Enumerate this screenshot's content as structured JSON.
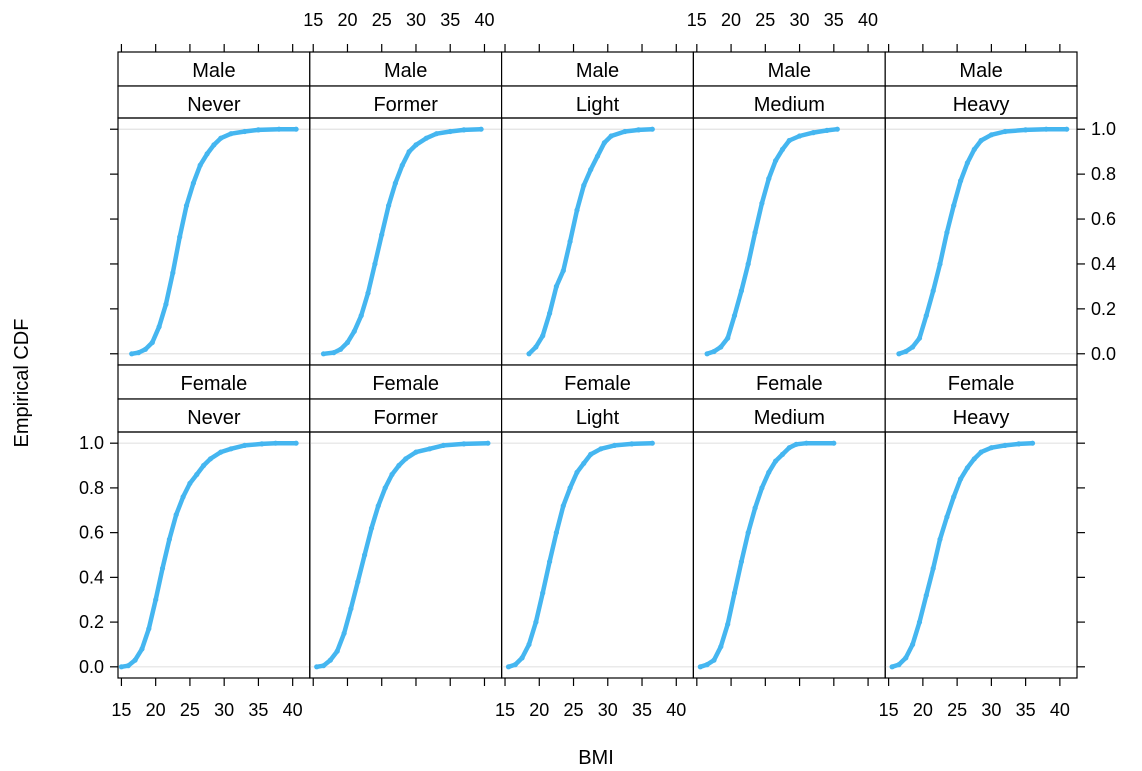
{
  "chart_data": {
    "type": "line",
    "xlabel": "BMI",
    "ylabel": "Empirical CDF",
    "xlim": [
      14.5,
      42.5
    ],
    "ylim": [
      -0.05,
      1.05
    ],
    "x_ticks": [
      15,
      20,
      25,
      30,
      35,
      40
    ],
    "y_ticks": [
      0.0,
      0.2,
      0.4,
      0.6,
      0.8,
      1.0
    ],
    "y_tick_labels": [
      "0.0",
      "0.2",
      "0.4",
      "0.6",
      "0.8",
      "1.0"
    ],
    "series_color": "#45b6f0",
    "rows": [
      {
        "sex": "Male",
        "panels": [
          {
            "smoking": "Never",
            "points": [
              [
                16.5,
                0.0
              ],
              [
                17.5,
                0.005
              ],
              [
                18.5,
                0.02
              ],
              [
                19.5,
                0.05
              ],
              [
                20.5,
                0.12
              ],
              [
                21.5,
                0.22
              ],
              [
                22.5,
                0.36
              ],
              [
                23.5,
                0.52
              ],
              [
                24.5,
                0.66
              ],
              [
                25.5,
                0.76
              ],
              [
                26.5,
                0.84
              ],
              [
                27.5,
                0.89
              ],
              [
                28.5,
                0.93
              ],
              [
                29.5,
                0.96
              ],
              [
                31,
                0.98
              ],
              [
                33,
                0.99
              ],
              [
                35,
                0.997
              ],
              [
                38,
                1.0
              ],
              [
                40.5,
                1.0
              ]
            ]
          },
          {
            "smoking": "Former",
            "points": [
              [
                16.5,
                0.0
              ],
              [
                18.0,
                0.005
              ],
              [
                19.0,
                0.02
              ],
              [
                20.0,
                0.05
              ],
              [
                21.0,
                0.1
              ],
              [
                22.0,
                0.17
              ],
              [
                23.0,
                0.27
              ],
              [
                24.0,
                0.4
              ],
              [
                25.0,
                0.53
              ],
              [
                26.0,
                0.66
              ],
              [
                27.0,
                0.76
              ],
              [
                28.0,
                0.84
              ],
              [
                29.0,
                0.9
              ],
              [
                30.0,
                0.93
              ],
              [
                31.5,
                0.96
              ],
              [
                33,
                0.98
              ],
              [
                35,
                0.99
              ],
              [
                37,
                0.997
              ],
              [
                39.5,
                1.0
              ]
            ]
          },
          {
            "smoking": "Light",
            "points": [
              [
                18.5,
                0.0
              ],
              [
                19.5,
                0.03
              ],
              [
                20.5,
                0.08
              ],
              [
                21.5,
                0.18
              ],
              [
                22.5,
                0.3
              ],
              [
                23.5,
                0.37
              ],
              [
                24.5,
                0.5
              ],
              [
                25.5,
                0.64
              ],
              [
                26.5,
                0.75
              ],
              [
                27.5,
                0.82
              ],
              [
                28.5,
                0.88
              ],
              [
                29.5,
                0.94
              ],
              [
                30.5,
                0.97
              ],
              [
                32.5,
                0.99
              ],
              [
                34.5,
                0.997
              ],
              [
                36.5,
                1.0
              ]
            ]
          },
          {
            "smoking": "Medium",
            "points": [
              [
                16.5,
                0.0
              ],
              [
                17.5,
                0.01
              ],
              [
                18.5,
                0.03
              ],
              [
                19.5,
                0.07
              ],
              [
                20.5,
                0.17
              ],
              [
                21.5,
                0.28
              ],
              [
                22.5,
                0.4
              ],
              [
                23.5,
                0.54
              ],
              [
                24.5,
                0.67
              ],
              [
                25.5,
                0.78
              ],
              [
                26.5,
                0.86
              ],
              [
                27.5,
                0.91
              ],
              [
                28.5,
                0.95
              ],
              [
                30,
                0.97
              ],
              [
                32,
                0.985
              ],
              [
                34,
                0.995
              ],
              [
                35.5,
                1.0
              ]
            ]
          },
          {
            "smoking": "Heavy",
            "points": [
              [
                16.5,
                0.0
              ],
              [
                17.5,
                0.01
              ],
              [
                18.5,
                0.03
              ],
              [
                19.5,
                0.07
              ],
              [
                20.5,
                0.17
              ],
              [
                21.5,
                0.28
              ],
              [
                22.5,
                0.4
              ],
              [
                23.5,
                0.54
              ],
              [
                24.5,
                0.66
              ],
              [
                25.5,
                0.77
              ],
              [
                26.5,
                0.85
              ],
              [
                27.5,
                0.91
              ],
              [
                28.5,
                0.95
              ],
              [
                30,
                0.975
              ],
              [
                32,
                0.99
              ],
              [
                35,
                0.997
              ],
              [
                38,
                1.0
              ],
              [
                41,
                1.0
              ]
            ]
          }
        ]
      },
      {
        "sex": "Female",
        "panels": [
          {
            "smoking": "Never",
            "points": [
              [
                15.0,
                0.0
              ],
              [
                16.0,
                0.005
              ],
              [
                17.0,
                0.03
              ],
              [
                18.0,
                0.08
              ],
              [
                19.0,
                0.17
              ],
              [
                20.0,
                0.3
              ],
              [
                21.0,
                0.44
              ],
              [
                22.0,
                0.57
              ],
              [
                23.0,
                0.68
              ],
              [
                24.0,
                0.76
              ],
              [
                25.0,
                0.82
              ],
              [
                26.0,
                0.86
              ],
              [
                27.0,
                0.9
              ],
              [
                28.0,
                0.93
              ],
              [
                29.5,
                0.96
              ],
              [
                31,
                0.975
              ],
              [
                33,
                0.99
              ],
              [
                35.5,
                0.997
              ],
              [
                37.5,
                1.0
              ],
              [
                40.5,
                1.0
              ]
            ]
          },
          {
            "smoking": "Former",
            "points": [
              [
                15.5,
                0.0
              ],
              [
                16.5,
                0.005
              ],
              [
                17.5,
                0.03
              ],
              [
                18.5,
                0.07
              ],
              [
                19.5,
                0.15
              ],
              [
                20.5,
                0.26
              ],
              [
                21.5,
                0.38
              ],
              [
                22.5,
                0.5
              ],
              [
                23.5,
                0.62
              ],
              [
                24.5,
                0.72
              ],
              [
                25.5,
                0.8
              ],
              [
                26.5,
                0.86
              ],
              [
                27.5,
                0.9
              ],
              [
                28.5,
                0.93
              ],
              [
                30,
                0.96
              ],
              [
                32,
                0.975
              ],
              [
                34,
                0.99
              ],
              [
                37,
                0.997
              ],
              [
                40.5,
                1.0
              ]
            ]
          },
          {
            "smoking": "Light",
            "points": [
              [
                15.5,
                0.0
              ],
              [
                16.5,
                0.01
              ],
              [
                17.5,
                0.04
              ],
              [
                18.5,
                0.1
              ],
              [
                19.5,
                0.2
              ],
              [
                20.5,
                0.33
              ],
              [
                21.5,
                0.47
              ],
              [
                22.5,
                0.6
              ],
              [
                23.5,
                0.72
              ],
              [
                24.5,
                0.8
              ],
              [
                25.5,
                0.87
              ],
              [
                26.5,
                0.91
              ],
              [
                27.5,
                0.95
              ],
              [
                29,
                0.975
              ],
              [
                31,
                0.99
              ],
              [
                33.5,
                0.997
              ],
              [
                36.5,
                1.0
              ]
            ]
          },
          {
            "smoking": "Medium",
            "points": [
              [
                15.5,
                0.0
              ],
              [
                16.5,
                0.01
              ],
              [
                17.5,
                0.03
              ],
              [
                18.5,
                0.09
              ],
              [
                19.5,
                0.19
              ],
              [
                20.5,
                0.33
              ],
              [
                21.5,
                0.47
              ],
              [
                22.5,
                0.6
              ],
              [
                23.5,
                0.71
              ],
              [
                24.5,
                0.8
              ],
              [
                25.5,
                0.87
              ],
              [
                26.5,
                0.92
              ],
              [
                27.5,
                0.95
              ],
              [
                28.5,
                0.98
              ],
              [
                29.5,
                0.995
              ],
              [
                31,
                1.0
              ],
              [
                35,
                1.0
              ]
            ]
          },
          {
            "smoking": "Heavy",
            "points": [
              [
                15.5,
                0.0
              ],
              [
                16.5,
                0.01
              ],
              [
                17.5,
                0.04
              ],
              [
                18.5,
                0.1
              ],
              [
                19.5,
                0.2
              ],
              [
                20.5,
                0.32
              ],
              [
                21.5,
                0.44
              ],
              [
                22.5,
                0.57
              ],
              [
                23.5,
                0.67
              ],
              [
                24.5,
                0.76
              ],
              [
                25.5,
                0.84
              ],
              [
                26.5,
                0.89
              ],
              [
                27.5,
                0.93
              ],
              [
                28.5,
                0.96
              ],
              [
                30,
                0.98
              ],
              [
                32,
                0.99
              ],
              [
                34,
                0.997
              ],
              [
                36,
                1.0
              ]
            ]
          }
        ]
      }
    ]
  }
}
